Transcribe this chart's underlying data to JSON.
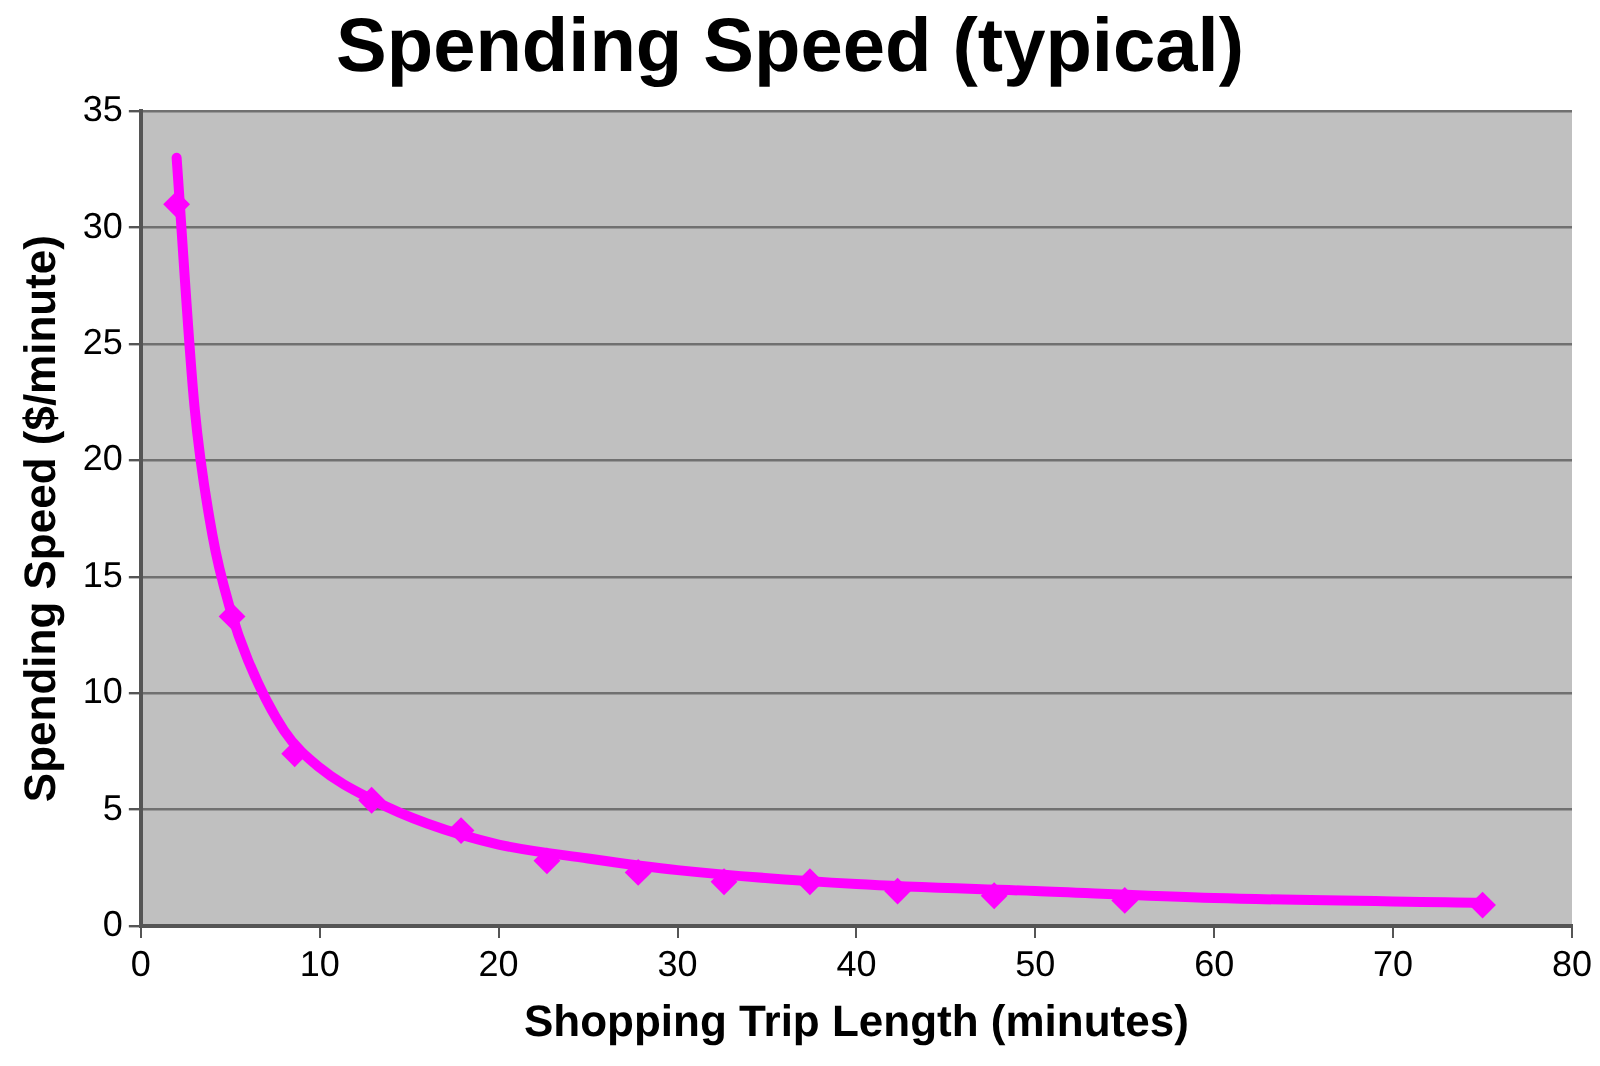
{
  "chart_data": {
    "type": "scatter",
    "title": "Spending Speed (typical)",
    "xlabel": "Shopping Trip Length (minutes)",
    "ylabel": "Spending Speed ($/minute)",
    "xlim": [
      0,
      80
    ],
    "xticks": [
      0,
      10,
      20,
      30,
      40,
      50,
      60,
      70,
      80
    ],
    "ylim": [
      0,
      35
    ],
    "yticks": [
      0,
      5,
      10,
      15,
      20,
      25,
      30,
      35
    ],
    "grid": "y",
    "marker": "diamond",
    "series": [
      {
        "type": "line",
        "color": "#ff00ff",
        "marker": "none",
        "x": [
          2,
          3,
          4,
          5,
          6,
          8,
          10,
          13,
          16,
          20,
          25,
          30,
          40,
          50,
          60,
          75
        ],
        "values": [
          33,
          22.3,
          16.8,
          13.6,
          11.4,
          8.4,
          6.8,
          5.4,
          4.4,
          3.5,
          2.9,
          2.4,
          1.8,
          1.5,
          1.2,
          1.0
        ]
      },
      {
        "type": "scatter",
        "color": "#ff00ff",
        "x": [
          2,
          5.1,
          8.6,
          12.9,
          17.9,
          22.7,
          27.8,
          32.6,
          37.4,
          42.3,
          47.7,
          55,
          75
        ],
        "values": [
          31,
          13.3,
          7.4,
          5.4,
          4.1,
          2.8,
          2.3,
          1.9,
          1.9,
          1.5,
          1.3,
          1.1,
          0.9
        ]
      }
    ]
  }
}
